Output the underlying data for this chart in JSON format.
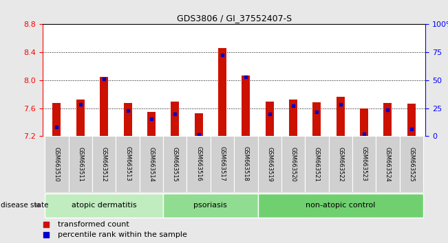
{
  "title": "GDS3806 / GI_37552407-S",
  "samples": [
    "GSM663510",
    "GSM663511",
    "GSM663512",
    "GSM663513",
    "GSM663514",
    "GSM663515",
    "GSM663516",
    "GSM663517",
    "GSM663518",
    "GSM663519",
    "GSM663520",
    "GSM663521",
    "GSM663522",
    "GSM663523",
    "GSM663524",
    "GSM663525"
  ],
  "red_values": [
    7.67,
    7.72,
    8.05,
    7.67,
    7.55,
    7.69,
    7.53,
    8.46,
    8.07,
    7.69,
    7.72,
    7.68,
    7.76,
    7.6,
    7.67,
    7.66
  ],
  "blue_values": [
    7.33,
    7.65,
    8.02,
    7.57,
    7.45,
    7.52,
    7.22,
    8.36,
    8.05,
    7.52,
    7.63,
    7.55,
    7.65,
    7.23,
    7.58,
    7.3
  ],
  "ymin": 7.2,
  "ymax": 8.8,
  "yticks_left": [
    7.2,
    7.6,
    8.0,
    8.4,
    8.8
  ],
  "yticks_right_vals": [
    0,
    25,
    50,
    75,
    100
  ],
  "groups": [
    {
      "label": "atopic dermatitis",
      "start": 0,
      "end": 5,
      "color": "#c0ecc0"
    },
    {
      "label": "psoriasis",
      "start": 5,
      "end": 9,
      "color": "#90dc90"
    },
    {
      "label": "non-atopic control",
      "start": 9,
      "end": 16,
      "color": "#70d070"
    }
  ],
  "bar_color": "#cc1100",
  "blue_color": "#0000cc",
  "fig_bg": "#e8e8e8",
  "plot_bg": "#ffffff",
  "xtick_box_color": "#d0d0d0",
  "legend_red_label": "transformed count",
  "legend_blue_label": "percentile rank within the sample",
  "disease_state_label": "disease state",
  "bar_width": 0.35
}
